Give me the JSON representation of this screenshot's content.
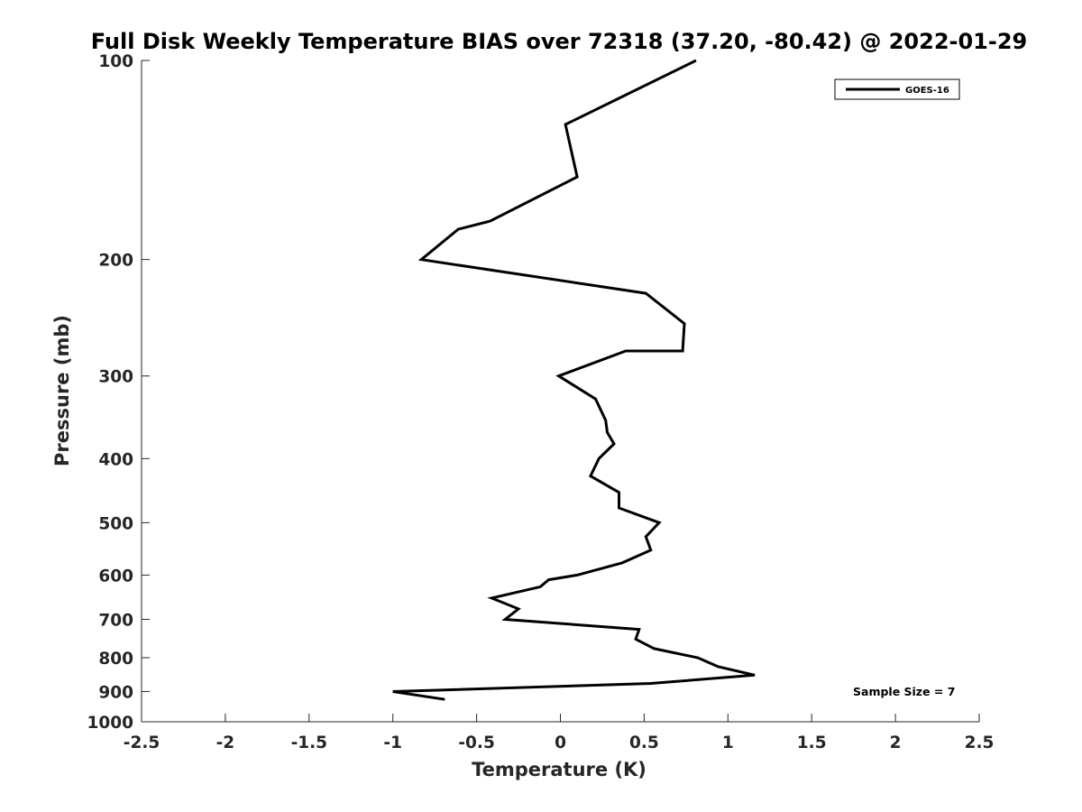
{
  "chart_data": {
    "type": "line",
    "title": "Full Disk Weekly Temperature BIAS over 72318 (37.20, -80.42) @ 2022-01-29",
    "xlabel": "Temperature (K)",
    "ylabel": "Pressure (mb)",
    "xlim": [
      -2.5,
      2.5
    ],
    "ylim": [
      100,
      1000
    ],
    "y_scale": "log",
    "y_reversed": true,
    "x_ticks": [
      "-2.5",
      "-2",
      "-1.5",
      "-1",
      "-0.5",
      "0",
      "0.5",
      "1",
      "1.5",
      "2",
      "2.5"
    ],
    "y_ticks": [
      "100",
      "200",
      "300",
      "400",
      "500",
      "600",
      "700",
      "800",
      "900",
      "1000"
    ],
    "grid": false,
    "legend_position": "top-right",
    "series": [
      {
        "name": "GOES-16",
        "color": "#000000",
        "points": [
          [
            0.81,
            100
          ],
          [
            0.03,
            125
          ],
          [
            0.1,
            150
          ],
          [
            -0.42,
            175
          ],
          [
            -0.61,
            180
          ],
          [
            -0.83,
            200
          ],
          [
            0.51,
            225
          ],
          [
            0.74,
            250
          ],
          [
            0.73,
            275
          ],
          [
            0.39,
            275
          ],
          [
            -0.01,
            300
          ],
          [
            0.21,
            325
          ],
          [
            0.27,
            350
          ],
          [
            0.28,
            365
          ],
          [
            0.32,
            380
          ],
          [
            0.23,
            400
          ],
          [
            0.18,
            425
          ],
          [
            0.35,
            450
          ],
          [
            0.35,
            475
          ],
          [
            0.59,
            500
          ],
          [
            0.51,
            525
          ],
          [
            0.54,
            550
          ],
          [
            0.37,
            575
          ],
          [
            0.1,
            600
          ],
          [
            -0.07,
            610
          ],
          [
            -0.12,
            625
          ],
          [
            -0.41,
            650
          ],
          [
            -0.25,
            675
          ],
          [
            -0.33,
            700
          ],
          [
            0.47,
            725
          ],
          [
            0.45,
            750
          ],
          [
            0.56,
            775
          ],
          [
            0.82,
            800
          ],
          [
            0.94,
            825
          ],
          [
            1.16,
            850
          ],
          [
            0.54,
            875
          ],
          [
            -1.0,
            900
          ],
          [
            -0.69,
            925
          ]
        ]
      }
    ],
    "annotation": "Sample Size = 7"
  }
}
